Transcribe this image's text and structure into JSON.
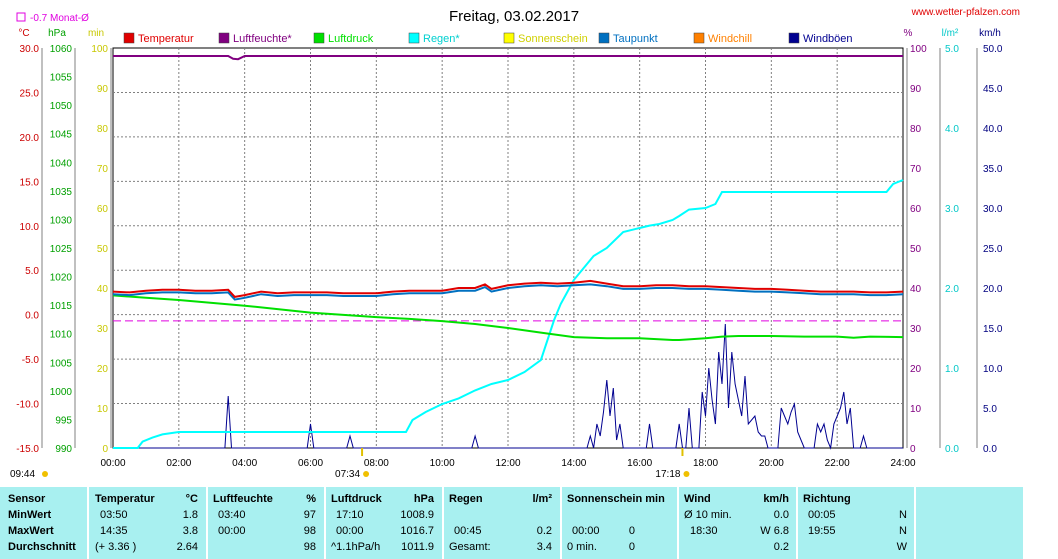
{
  "header": {
    "title": "Freitag, 03.02.2017",
    "url": "www.wetter-pfalzen.com",
    "month_avg": "-0.7 Monat-Ø"
  },
  "chart_data": {
    "type": "line",
    "x_ticks": [
      "00:00",
      "02:00",
      "04:00",
      "06:00",
      "08:00",
      "10:00",
      "12:00",
      "14:00",
      "16:00",
      "18:00",
      "20:00",
      "22:00",
      "24:00"
    ],
    "xlim": [
      0,
      24
    ],
    "sunrise_label": "07:34",
    "sunset_label": "17:18",
    "daylength_label": "09:44",
    "axes": {
      "temp": {
        "unit": "°C",
        "ticks": [
          "30.0",
          "25.0",
          "20.0",
          "15.0",
          "10.0",
          "5.0",
          "0.0",
          "-5.0",
          "-10.0",
          "-15.0"
        ],
        "lim": [
          -15,
          30
        ],
        "color": "#cc0000"
      },
      "press": {
        "unit": "hPa",
        "ticks": [
          "1060",
          "1055",
          "1050",
          "1045",
          "1040",
          "1035",
          "1030",
          "1025",
          "1020",
          "1015",
          "1010",
          "1005",
          "1000",
          "995",
          "990"
        ],
        "lim": [
          990,
          1060
        ],
        "color": "#00a000"
      },
      "sun": {
        "unit": "min",
        "ticks": [
          "100",
          "90",
          "80",
          "70",
          "60",
          "50",
          "40",
          "30",
          "20",
          "10",
          "0"
        ],
        "lim": [
          0,
          100
        ],
        "color": "#c8c800"
      },
      "hum": {
        "unit": "%",
        "ticks": [
          "100",
          "90",
          "80",
          "70",
          "60",
          "50",
          "40",
          "30",
          "20",
          "10",
          "0"
        ],
        "lim": [
          0,
          100
        ],
        "color": "#800080"
      },
      "rain": {
        "unit": "l/m²",
        "ticks": [
          "5.0",
          "4.0",
          "3.0",
          "2.0",
          "1.0",
          "0.0"
        ],
        "lim": [
          0,
          5
        ],
        "color": "#00c8c8"
      },
      "wind": {
        "unit": "km/h",
        "ticks": [
          "50.0",
          "45.0",
          "40.0",
          "35.0",
          "30.0",
          "25.0",
          "20.0",
          "15.0",
          "10.0",
          "5.0",
          "0.0"
        ],
        "lim": [
          0,
          50
        ],
        "color": "#000080"
      }
    },
    "legend": [
      {
        "name": "Temperatur",
        "color": "#e00000"
      },
      {
        "name": "Luftfeuchte*",
        "color": "#800080"
      },
      {
        "name": "Luftdruck",
        "color": "#00e000"
      },
      {
        "name": "Regen*",
        "color": "#00ffff"
      },
      {
        "name": "Sonnenschein",
        "color": "#ffff00"
      },
      {
        "name": "Taupunkt",
        "color": "#0070c0"
      },
      {
        "name": "Windchill",
        "color": "#ff8000"
      },
      {
        "name": "Windböen",
        "color": "#000090"
      }
    ],
    "month_avg_temp": -0.7,
    "series": [
      {
        "name": "Temperatur",
        "axis": "temp",
        "color": "#e00000",
        "x": [
          0,
          0.5,
          1,
          1.5,
          2,
          2.5,
          3,
          3.5,
          3.7,
          4,
          4.5,
          5,
          5.5,
          6,
          6.5,
          7,
          7.5,
          8,
          8.5,
          9,
          9.5,
          10,
          10.5,
          11,
          11.3,
          11.5,
          12,
          12.5,
          13,
          13.5,
          14,
          14.5,
          15,
          15.5,
          16,
          16.5,
          17,
          17.5,
          18,
          18.5,
          19,
          19.5,
          20,
          20.5,
          21,
          21.5,
          22,
          22.5,
          23,
          23.5,
          24
        ],
        "y": [
          2.6,
          2.5,
          2.7,
          2.8,
          2.8,
          2.7,
          2.7,
          2.8,
          2.0,
          2.2,
          2.6,
          2.4,
          2.5,
          2.5,
          2.5,
          2.4,
          2.4,
          2.4,
          2.6,
          2.7,
          2.7,
          2.7,
          3.0,
          3.0,
          3.4,
          2.9,
          3.3,
          3.5,
          3.6,
          3.5,
          3.6,
          3.8,
          3.5,
          3.2,
          3.2,
          3.3,
          3.3,
          3.2,
          3.2,
          3.1,
          3.0,
          2.9,
          2.9,
          2.8,
          2.7,
          2.6,
          2.6,
          2.6,
          2.5,
          2.5,
          2.6
        ]
      },
      {
        "name": "Taupunkt",
        "axis": "temp",
        "color": "#0070c0",
        "x": [
          0,
          0.5,
          1,
          1.5,
          2,
          2.5,
          3,
          3.5,
          3.7,
          4,
          4.5,
          5,
          5.5,
          6,
          6.5,
          7,
          7.5,
          8,
          8.5,
          9,
          9.5,
          10,
          10.5,
          11,
          11.3,
          11.5,
          12,
          12.5,
          13,
          13.5,
          14,
          14.5,
          15,
          15.5,
          16,
          16.5,
          17,
          17.5,
          18,
          18.5,
          19,
          19.5,
          20,
          20.5,
          21,
          21.5,
          22,
          22.5,
          23,
          23.5,
          24
        ],
        "y": [
          2.3,
          2.2,
          2.4,
          2.5,
          2.5,
          2.4,
          2.4,
          2.5,
          1.7,
          1.9,
          2.3,
          2.1,
          2.2,
          2.2,
          2.2,
          2.1,
          2.1,
          2.1,
          2.3,
          2.4,
          2.4,
          2.4,
          2.7,
          2.7,
          3.1,
          2.6,
          3.0,
          3.2,
          3.3,
          3.2,
          3.3,
          3.4,
          3.2,
          2.9,
          2.9,
          3.0,
          3.0,
          2.9,
          2.9,
          2.8,
          2.7,
          2.6,
          2.6,
          2.5,
          2.4,
          2.3,
          2.3,
          2.3,
          2.2,
          2.2,
          2.3
        ]
      },
      {
        "name": "Luftdruck",
        "axis": "press",
        "color": "#00e000",
        "x": [
          0,
          1,
          2,
          3,
          4,
          5,
          6,
          7,
          8,
          9,
          10,
          11,
          12,
          13,
          14,
          15,
          16,
          17,
          17.2,
          18,
          18.5,
          19,
          20,
          21,
          22,
          22.5,
          23,
          24
        ],
        "y": [
          1016.7,
          1016.3,
          1015.9,
          1015.4,
          1014.9,
          1014.3,
          1013.7,
          1013.3,
          1012.9,
          1012.6,
          1012.2,
          1011.7,
          1011.0,
          1010.2,
          1009.4,
          1009.2,
          1009.2,
          1008.9,
          1008.9,
          1009.2,
          1009.5,
          1009.6,
          1009.6,
          1009.5,
          1009.5,
          1009.3,
          1009.5,
          1009.4
        ]
      },
      {
        "name": "Luftfeuchte*",
        "axis": "hum",
        "color": "#800080",
        "x": [
          0,
          3.5,
          3.65,
          3.8,
          4,
          24
        ],
        "y": [
          98,
          98,
          97.3,
          97.2,
          98,
          98
        ]
      },
      {
        "name": "Regen*",
        "axis": "rain",
        "color": "#00ffff",
        "x": [
          0,
          0.75,
          0.9,
          1.2,
          1.5,
          2,
          3,
          4,
          5,
          6,
          7,
          8,
          8.9,
          9.1,
          9.5,
          10,
          10.5,
          11,
          11.5,
          12,
          12.5,
          13,
          13.2,
          13.4,
          13.6,
          13.8,
          14,
          14.3,
          14.6,
          15,
          15.5,
          16,
          16.3,
          16.6,
          17,
          17.2,
          17.5,
          18,
          18.3,
          18.5,
          19,
          20,
          21,
          22,
          23,
          23.5,
          23.7,
          24
        ],
        "y": [
          0,
          0,
          0.08,
          0.13,
          0.17,
          0.2,
          0.2,
          0.2,
          0.2,
          0.2,
          0.2,
          0.2,
          0.2,
          0.35,
          0.45,
          0.55,
          0.62,
          0.72,
          0.8,
          0.85,
          0.95,
          1.1,
          1.35,
          1.6,
          1.8,
          1.95,
          2.1,
          2.25,
          2.4,
          2.5,
          2.7,
          2.75,
          2.78,
          2.8,
          2.85,
          2.9,
          2.98,
          3.0,
          3.05,
          3.2,
          3.2,
          3.2,
          3.2,
          3.2,
          3.2,
          3.2,
          3.3,
          3.35
        ]
      },
      {
        "name": "Windböen",
        "axis": "wind",
        "color": "#000090",
        "x": [
          0,
          3.4,
          3.5,
          3.6,
          3.7,
          5.9,
          6.0,
          6.1,
          7.1,
          7.2,
          7.3,
          10.9,
          11.0,
          11.1,
          14.4,
          14.5,
          14.6,
          14.7,
          14.8,
          14.9,
          15.0,
          15.1,
          15.2,
          15.3,
          15.4,
          15.5,
          15.6,
          16.2,
          16.3,
          16.4,
          17.1,
          17.2,
          17.3,
          17.4,
          17.5,
          17.6,
          17.8,
          17.9,
          18.0,
          18.1,
          18.2,
          18.3,
          18.4,
          18.5,
          18.6,
          18.7,
          18.8,
          18.9,
          19.0,
          19.1,
          19.2,
          19.3,
          19.5,
          19.6,
          19.7,
          19.8,
          19.9,
          20.0,
          20.1,
          20.2,
          20.3,
          20.4,
          20.5,
          20.6,
          20.7,
          20.8,
          20.9,
          21.0,
          21.1,
          21.3,
          21.4,
          21.5,
          21.6,
          21.7,
          21.8,
          21.9,
          22.0,
          22.1,
          22.2,
          22.3,
          22.4,
          22.5,
          22.6,
          22.7,
          22.8,
          22.9,
          23.0,
          24
        ],
        "y": [
          0,
          0,
          6.5,
          0,
          0,
          0,
          3,
          0,
          0,
          1.5,
          0,
          0,
          1.5,
          0,
          0,
          1.5,
          0,
          3,
          1.5,
          4.5,
          8.5,
          4,
          7.5,
          1,
          3,
          0,
          0,
          0,
          3,
          0,
          0,
          3,
          0,
          0,
          5,
          0,
          0,
          7,
          4,
          10,
          6,
          3,
          12,
          8,
          15.5,
          5,
          12,
          8,
          6,
          4,
          9,
          3,
          4,
          2,
          1.5,
          1.5,
          0,
          0,
          0,
          0,
          5,
          4,
          3,
          4.5,
          5.5,
          2,
          1,
          0,
          0,
          0,
          3,
          2,
          3,
          1,
          0,
          3,
          4,
          5,
          7,
          3,
          5,
          0,
          0,
          0,
          1.5,
          0,
          0,
          0
        ]
      }
    ]
  },
  "table": {
    "headers": {
      "sensor": "Sensor",
      "temperature": "Temperatur",
      "temp_unit": "°C",
      "humidity": "Luftfeuchte",
      "hum_unit": "%",
      "pressure": "Luftdruck",
      "press_unit": "hPa",
      "rain": "Regen",
      "rain_unit": "l/m²",
      "sunshine": "Sonnenschein min",
      "wind": "Wind",
      "wind_unit": "km/h",
      "direction": "Richtung"
    },
    "row_labels": [
      "MinWert",
      "MaxWert",
      "Durchschnitt"
    ],
    "temperature": {
      "min_time": "03:50",
      "min": "1.8",
      "max_time": "14:35",
      "max": "3.8",
      "avg_note": "(+ 3.36 )",
      "avg": "2.64"
    },
    "humidity": {
      "min_time": "03:40",
      "min": "97",
      "max_time": "00:00",
      "max": "98",
      "avg": "98"
    },
    "pressure": {
      "min_time": "17:10",
      "min": "1008.9",
      "max_time": "00:00",
      "max": "1016.7",
      "avg_note": "^1.1hPa/h",
      "avg": "1011.9"
    },
    "rain": {
      "max_time": "00:45",
      "max": "0.2",
      "total_label": "Gesamt:",
      "total": "3.4"
    },
    "sunshine": {
      "max_time": "00:00",
      "max": "0",
      "total_note": "0 min.",
      "total": "0"
    },
    "wind": {
      "min_label": "Ø 10 min.",
      "min": "0.0",
      "max_time": "18:30",
      "max": "W 6.8",
      "avg": "0.2"
    },
    "direction": {
      "min_time": "00:05",
      "min": "N",
      "max_time": "19:55",
      "max": "N",
      "avg": "W"
    }
  }
}
